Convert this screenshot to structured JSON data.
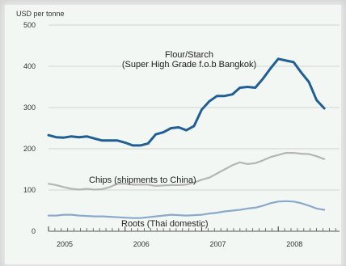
{
  "chart_data": {
    "type": "line",
    "ylabel": "USD per tonne",
    "ylim": [
      0,
      500
    ],
    "yticks": [
      0,
      100,
      200,
      300,
      400,
      500
    ],
    "xlim": [
      2005,
      2008.8
    ],
    "xticks": [
      {
        "value": 2005,
        "label": "2005"
      },
      {
        "value": 2006,
        "label": "2006"
      },
      {
        "value": 2007,
        "label": "2007"
      },
      {
        "value": 2008,
        "label": "2008"
      }
    ],
    "grid": true,
    "series": [
      {
        "name": "Flour/Starch",
        "subtitle": "(Super High Grade f.o.b Bangkok)",
        "color": "#1f5f95",
        "x": [
          2005.0,
          2005.1,
          2005.2,
          2005.3,
          2005.4,
          2005.5,
          2005.6,
          2005.7,
          2005.8,
          2005.9,
          2006.0,
          2006.1,
          2006.2,
          2006.3,
          2006.4,
          2006.5,
          2006.6,
          2006.7,
          2006.8,
          2006.9,
          2007.0,
          2007.1,
          2007.2,
          2007.3,
          2007.4,
          2007.5,
          2007.6,
          2007.7,
          2007.8,
          2007.9,
          2008.0,
          2008.1,
          2008.2,
          2008.3,
          2008.4,
          2008.5,
          2008.6
        ],
        "y": [
          233,
          228,
          227,
          230,
          228,
          230,
          225,
          220,
          220,
          220,
          215,
          208,
          208,
          213,
          235,
          240,
          250,
          252,
          245,
          255,
          295,
          315,
          328,
          328,
          332,
          348,
          350,
          348,
          370,
          395,
          418,
          414,
          410,
          385,
          362,
          318,
          298
        ]
      },
      {
        "name": "Chips (shipments to China)",
        "color": "#b5b5b5",
        "x": [
          2005.0,
          2005.1,
          2005.2,
          2005.3,
          2005.4,
          2005.5,
          2005.6,
          2005.7,
          2005.8,
          2005.9,
          2006.0,
          2006.1,
          2006.2,
          2006.3,
          2006.4,
          2006.5,
          2006.6,
          2006.7,
          2006.8,
          2006.9,
          2007.0,
          2007.1,
          2007.2,
          2007.3,
          2007.4,
          2007.5,
          2007.6,
          2007.7,
          2007.8,
          2007.9,
          2008.0,
          2008.1,
          2008.2,
          2008.3,
          2008.4,
          2008.5,
          2008.6
        ],
        "y": [
          115,
          112,
          107,
          103,
          101,
          103,
          101,
          102,
          107,
          115,
          115,
          113,
          113,
          113,
          110,
          111,
          112,
          112,
          113,
          118,
          125,
          130,
          140,
          150,
          160,
          167,
          163,
          165,
          172,
          180,
          185,
          190,
          190,
          188,
          187,
          182,
          175
        ]
      },
      {
        "name": "Roots (Thai domestic)",
        "color": "#8aa9cd",
        "x": [
          2005.0,
          2005.1,
          2005.2,
          2005.3,
          2005.4,
          2005.5,
          2005.6,
          2005.7,
          2005.8,
          2005.9,
          2006.0,
          2006.1,
          2006.2,
          2006.3,
          2006.4,
          2006.5,
          2006.6,
          2006.7,
          2006.8,
          2006.9,
          2007.0,
          2007.1,
          2007.2,
          2007.3,
          2007.4,
          2007.5,
          2007.6,
          2007.7,
          2007.8,
          2007.9,
          2008.0,
          2008.1,
          2008.2,
          2008.3,
          2008.4,
          2008.5,
          2008.6
        ],
        "y": [
          38,
          38,
          40,
          40,
          38,
          37,
          36,
          36,
          35,
          34,
          33,
          32,
          32,
          34,
          36,
          38,
          40,
          39,
          38,
          39,
          40,
          43,
          45,
          48,
          50,
          52,
          55,
          57,
          62,
          68,
          72,
          73,
          72,
          68,
          62,
          55,
          52
        ]
      }
    ]
  }
}
